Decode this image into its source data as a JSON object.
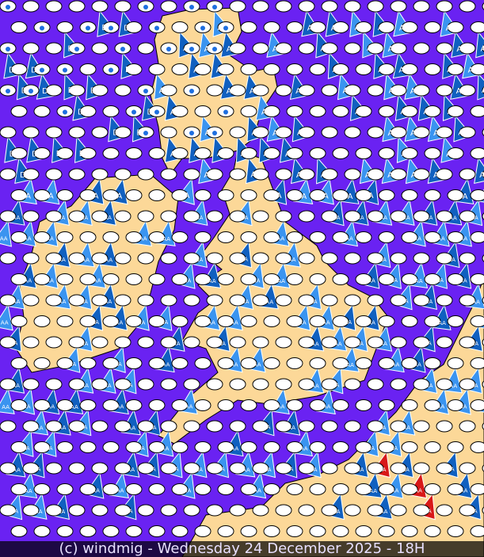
{
  "map": {
    "colors": {
      "sea": "#6a22f2",
      "land": "#fcd898",
      "coast": "#000000",
      "symbol_dark_blue": "#1060c0",
      "symbol_light_blue": "#3a94f0",
      "symbol_red": "#d81818",
      "cloud_ellipse": "#ffffff"
    },
    "symbol_labels": [
      "D",
      "A",
      "AA"
    ],
    "icons": [
      "cloud-ellipse-icon",
      "rain-drop-icon",
      "fog-icon",
      "wind-triangle-icon"
    ]
  },
  "footer": {
    "text": "(c) windmig - Wednesday 24 December 2025 - 18H"
  }
}
